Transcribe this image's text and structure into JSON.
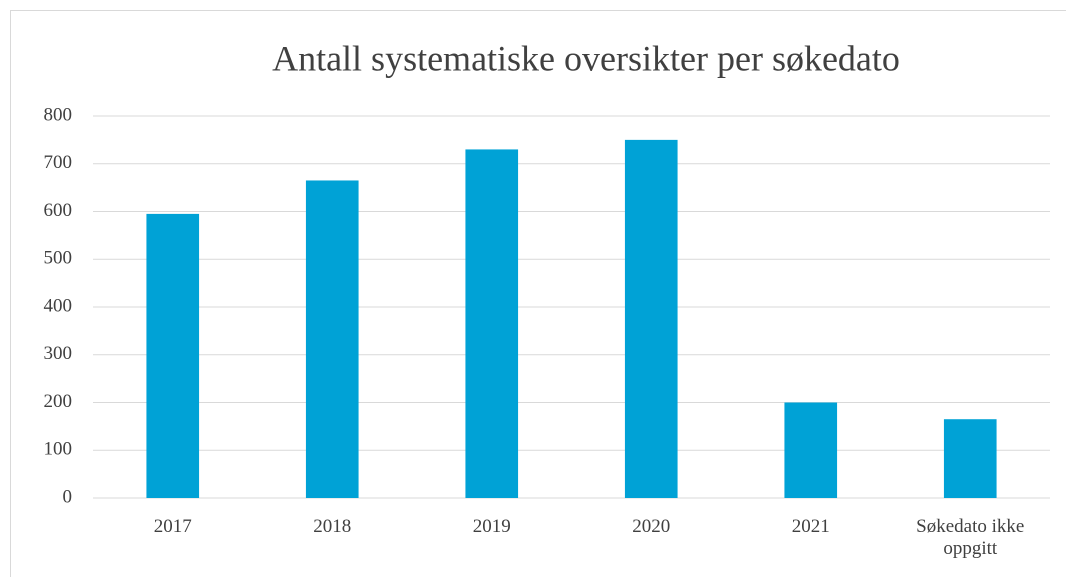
{
  "chart_data": {
    "type": "bar",
    "title": "Antall systematiske oversikter per søkedato",
    "categories": [
      "2017",
      "2018",
      "2019",
      "2020",
      "2021",
      "Søkedato ikke oppgitt"
    ],
    "values": [
      595,
      665,
      730,
      750,
      200,
      165
    ],
    "color": "#00a2d6",
    "ylim": [
      0,
      800
    ],
    "yticks": [
      0,
      100,
      200,
      300,
      400,
      500,
      600,
      700,
      800
    ],
    "grid": true
  }
}
